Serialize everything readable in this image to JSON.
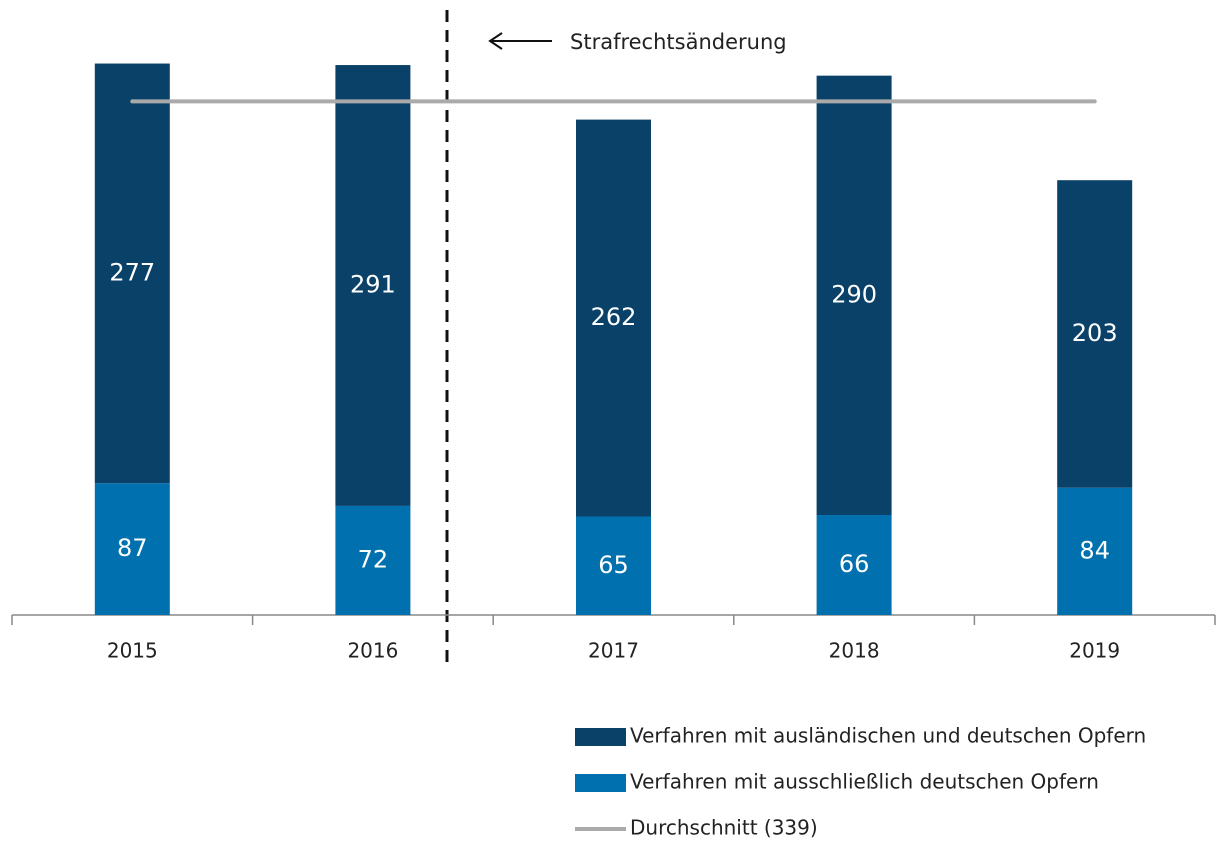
{
  "chart_data": {
    "type": "stacked_bar",
    "categories": [
      "2015",
      "2016",
      "2017",
      "2018",
      "2019"
    ],
    "series": [
      {
        "name": "Verfahren mit ausschließlich deutschen Opfern",
        "color": "#0071ae",
        "values": [
          87,
          72,
          65,
          66,
          84
        ]
      },
      {
        "name": "Verfahren mit ausländischen und deutschen Opfern",
        "color": "#0a4168",
        "values": [
          277,
          291,
          262,
          290,
          203
        ]
      }
    ],
    "average": {
      "name": "Durchschnitt (339)",
      "value": 339,
      "color": "#aaaaaa"
    },
    "annotation": "Strafrechtsänderung"
  }
}
